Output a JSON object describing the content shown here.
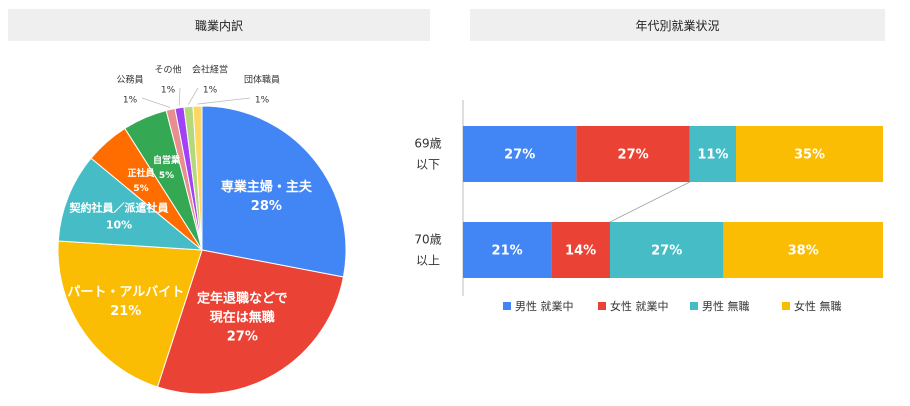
{
  "left_title": "職業内訳",
  "right_title": "年代別就業状況",
  "colors": {
    "blue": "#4285f4",
    "red": "#ea4335",
    "yellow": "#fbbc04",
    "teal": "#46bdc6",
    "orange": "#ff6d01",
    "green": "#34a853",
    "pink": "#e98e8e",
    "purple": "#a142f4",
    "lime": "#b3d97c"
  },
  "chart_data": [
    {
      "type": "pie",
      "title": "職業内訳",
      "slices": [
        {
          "label": "専業主婦・主夫",
          "value": 28,
          "value_label": "28%",
          "color": "#4285f4"
        },
        {
          "label": "定年退職などで現在は無職",
          "value": 27,
          "value_label": "27%",
          "color": "#ea4335"
        },
        {
          "label": "パート・アルバイト",
          "value": 21,
          "value_label": "21%",
          "color": "#fbbc04"
        },
        {
          "label": "契約社員／派遣社員",
          "value": 10,
          "value_label": "10%",
          "color": "#46bdc6"
        },
        {
          "label": "正社員",
          "value": 5,
          "value_label": "5%",
          "color": "#ff6d01"
        },
        {
          "label": "自営業",
          "value": 5,
          "value_label": "5%",
          "color": "#34a853"
        },
        {
          "label": "公務員",
          "value": 1,
          "value_label": "1%",
          "color": "#e98e8e"
        },
        {
          "label": "その他",
          "value": 1,
          "value_label": "1%",
          "color": "#a142f4"
        },
        {
          "label": "会社経営",
          "value": 1,
          "value_label": "1%",
          "color": "#b3d97c"
        },
        {
          "label": "団体職員",
          "value": 1,
          "value_label": "1%",
          "color": "#fdd663"
        }
      ]
    },
    {
      "type": "bar",
      "orientation": "horizontal",
      "stacked": "100%",
      "title": "年代別就業状況",
      "categories": [
        "69歳以下",
        "70歳以上"
      ],
      "series": [
        {
          "name": "男性 就業中",
          "values": [
            27,
            21
          ],
          "color": "#4285f4"
        },
        {
          "name": "女性 就業中",
          "values": [
            27,
            14
          ],
          "color": "#ea4335"
        },
        {
          "name": "男性 無職",
          "values": [
            11,
            27
          ],
          "color": "#46bdc6"
        },
        {
          "name": "女性 無職",
          "values": [
            35,
            38
          ],
          "color": "#fbbc04"
        }
      ],
      "legend": "bottom"
    }
  ]
}
